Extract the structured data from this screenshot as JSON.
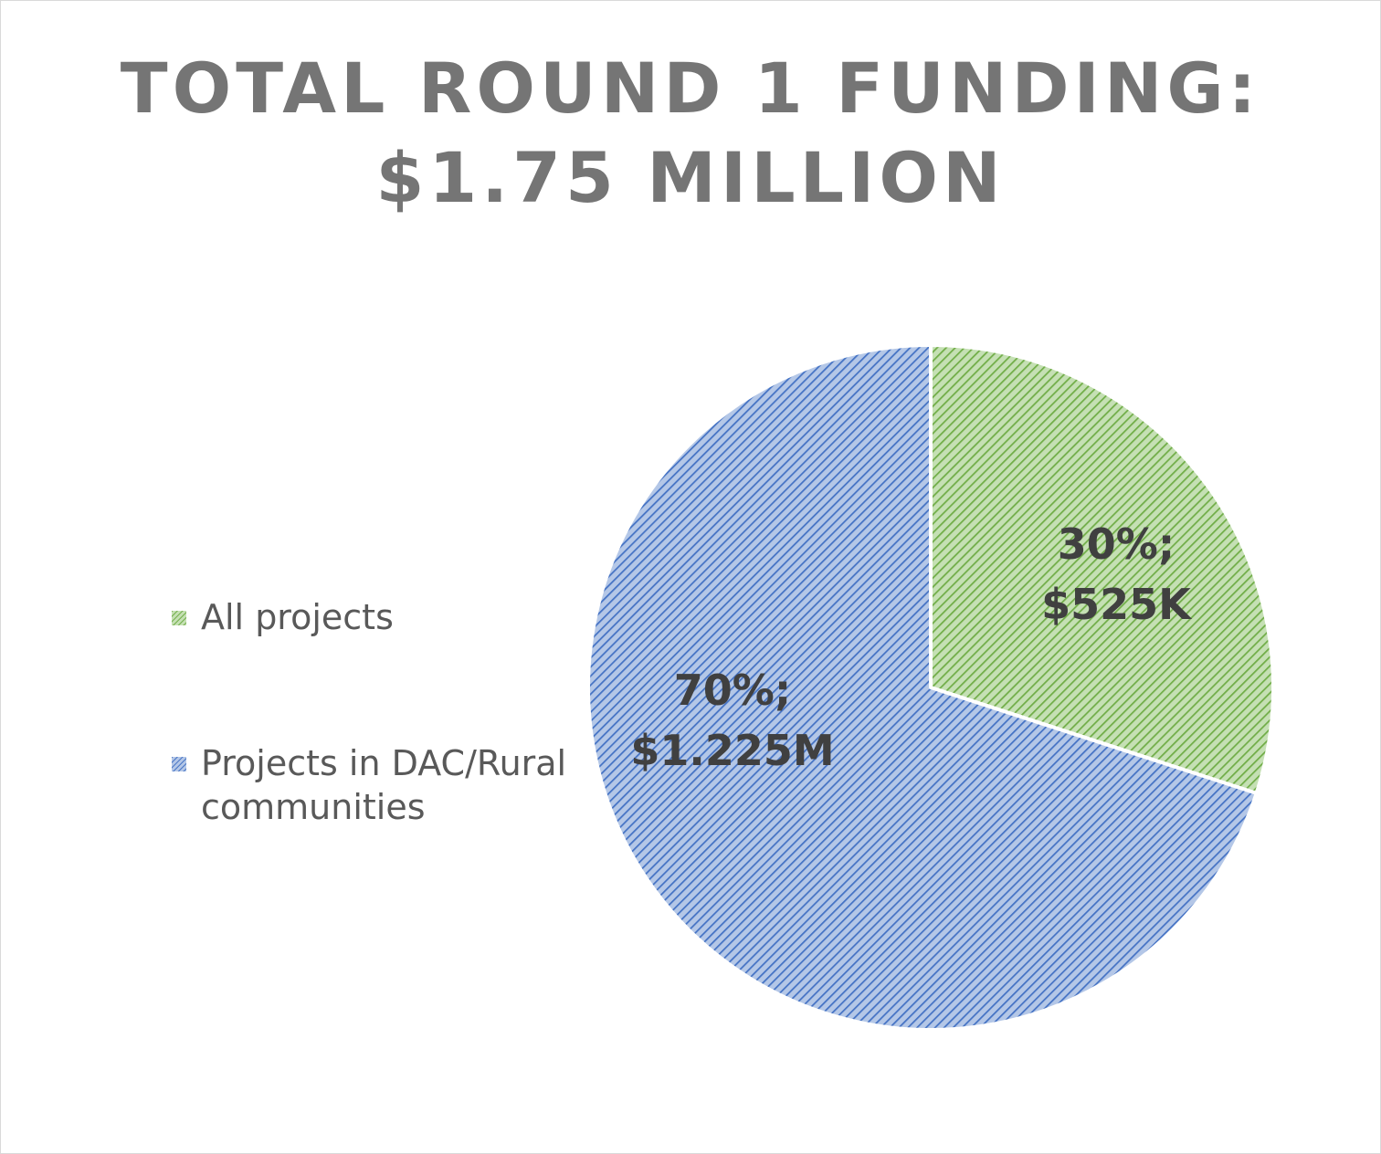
{
  "chart_data": {
    "type": "pie",
    "title_line1": "TOTAL ROUND 1 FUNDING:",
    "title_line2": "$1.75 MILLION",
    "slices": [
      {
        "name": "All projects",
        "label_line1": "30%;",
        "label_line2": "$525K",
        "percent": 30,
        "value": 525000,
        "color": "#70ad47"
      },
      {
        "name": "Projects in DAC/Rural communities",
        "label_line1": "70%;",
        "label_line2": "$1.225M",
        "percent": 70,
        "value": 1225000,
        "color": "#4472c4"
      }
    ],
    "legend": {
      "placement": "left",
      "items": [
        "All projects",
        "Projects in DAC/Rural communities"
      ]
    },
    "fill_style": "diagonal-hatch"
  }
}
